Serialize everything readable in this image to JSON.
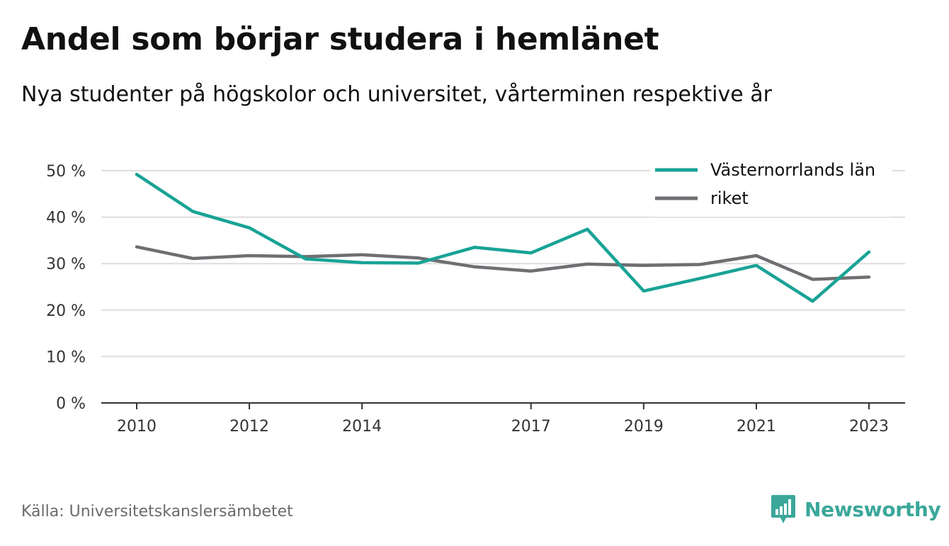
{
  "header": {
    "title": "Andel som börjar studera i hemlänet",
    "subtitle": "Nya studenter på högskolor och universitet, vårterminen respektive år"
  },
  "footer": {
    "source": "Källa: Universitetskanslersämbetet",
    "brand": "Newsworthy",
    "brand_icon": "bar-chart-speech-bubble-icon"
  },
  "colors": {
    "series_1": "#18a396",
    "series_2": "#6e6e73",
    "grid": "#dddddd",
    "axis": "#333333",
    "brand": "#3aa79a"
  },
  "chart_data": {
    "type": "line",
    "x": [
      2010,
      2011,
      2012,
      2013,
      2014,
      2015,
      2016,
      2017,
      2018,
      2019,
      2020,
      2021,
      2022,
      2023
    ],
    "x_tick_labels": [
      "2010",
      "2012",
      "2014",
      "2017",
      "2019",
      "2021",
      "2023"
    ],
    "y_tick_labels": [
      "0 %",
      "10 %",
      "20 %",
      "30 %",
      "40 %",
      "50 %"
    ],
    "y_ticks": [
      0,
      10,
      20,
      30,
      40,
      50
    ],
    "ylim": [
      0,
      50
    ],
    "xlim": [
      2010,
      2023
    ],
    "grid": true,
    "legend_position": "top-right",
    "series": [
      {
        "name": "Västernorrlands län",
        "values": [
          49.2,
          41.2,
          37.7,
          31.0,
          30.2,
          30.1,
          33.5,
          32.3,
          37.4,
          24.1,
          26.8,
          29.6,
          21.9,
          32.5
        ]
      },
      {
        "name": "riket",
        "values": [
          33.6,
          31.1,
          31.7,
          31.5,
          31.9,
          31.2,
          29.3,
          28.4,
          29.9,
          29.6,
          29.8,
          31.7,
          26.6,
          27.1
        ]
      }
    ]
  }
}
